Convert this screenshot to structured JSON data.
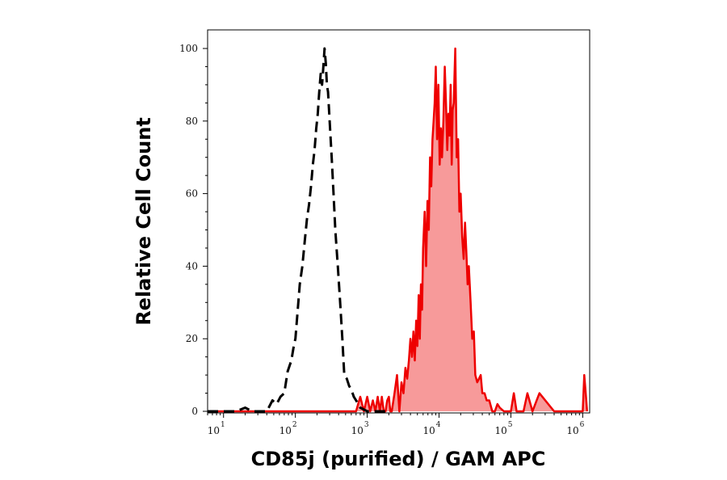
{
  "chart_data": {
    "type": "area",
    "title": "",
    "xlabel": "CD85j (purified) / GAM APC",
    "ylabel": "Relative Cell Count",
    "xscale": "log",
    "xlim": [
      6,
      1250000
    ],
    "ylim": [
      0,
      100
    ],
    "grid": false,
    "legend": "none",
    "y_ticks": [
      {
        "value": 0,
        "label": "0"
      },
      {
        "value": 20,
        "label": "20"
      },
      {
        "value": 40,
        "label": "40"
      },
      {
        "value": 60,
        "label": "60"
      },
      {
        "value": 80,
        "label": "80"
      },
      {
        "value": 100,
        "label": "100"
      }
    ],
    "x_ticks": [
      {
        "value": 10,
        "base": "10",
        "exp": "1"
      },
      {
        "value": 100,
        "base": "10",
        "exp": "2"
      },
      {
        "value": 1000,
        "base": "10",
        "exp": "3"
      },
      {
        "value": 10000,
        "base": "10",
        "exp": "4"
      },
      {
        "value": 100000,
        "base": "10",
        "exp": "5"
      },
      {
        "value": 1000000,
        "base": "10",
        "exp": "6"
      }
    ],
    "series": [
      {
        "style": "dashed",
        "color": "#000000",
        "fill": "none",
        "x": [
          6,
          15,
          20,
          25,
          40,
          48,
          55,
          62,
          70,
          78,
          88,
          95,
          100,
          108,
          115,
          125,
          135,
          145,
          155,
          165,
          175,
          185,
          195,
          205,
          215,
          225,
          235,
          245,
          255,
          265,
          275,
          285,
          300,
          320,
          340,
          360,
          390,
          420,
          450,
          480,
          520,
          560,
          600,
          650,
          700,
          750,
          800,
          1000,
          2000
        ],
        "y": [
          0,
          0,
          1,
          0,
          0,
          3,
          2,
          4,
          5,
          11,
          14,
          18,
          20,
          28,
          35,
          40,
          47,
          53,
          57,
          62,
          68,
          72,
          78,
          82,
          88,
          93,
          90,
          95,
          100,
          96,
          90,
          88,
          80,
          70,
          60,
          50,
          40,
          30,
          20,
          10,
          9,
          7,
          6,
          4,
          3,
          2,
          1,
          0,
          0
        ]
      },
      {
        "style": "solid",
        "color": "#ee0000",
        "fill": "#f79a9a",
        "x": [
          6,
          700,
          800,
          900,
          1000,
          1100,
          1200,
          1300,
          1400,
          1500,
          1600,
          1700,
          1800,
          1900,
          2000,
          2100,
          2200,
          2400,
          2600,
          2800,
          3000,
          3200,
          3400,
          3600,
          3800,
          4000,
          4200,
          4400,
          4600,
          4800,
          5000,
          5200,
          5400,
          5600,
          5800,
          6000,
          6300,
          6600,
          6900,
          7200,
          7500,
          7800,
          8100,
          8400,
          8700,
          9000,
          9400,
          9800,
          10200,
          10600,
          11000,
          11500,
          12000,
          12500,
          13000,
          13500,
          14000,
          14500,
          15000,
          15500,
          16000,
          16800,
          17600,
          18400,
          19200,
          20000,
          21000,
          22000,
          23000,
          24000,
          25000,
          26000,
          27500,
          29000,
          30500,
          32000,
          34000,
          36000,
          38000,
          40000,
          43000,
          46000,
          50000,
          55000,
          60000,
          65000,
          70000,
          80000,
          100000,
          110000,
          120000,
          150000,
          170000,
          200000,
          250000,
          400000,
          900000,
          1000000,
          1050000,
          1100000,
          1150000
        ],
        "y": [
          0,
          0,
          4,
          0,
          4,
          0,
          3,
          0,
          4,
          0,
          4,
          0,
          0,
          3,
          4,
          0,
          0,
          5,
          10,
          0,
          8,
          5,
          12,
          9,
          14,
          20,
          15,
          22,
          14,
          25,
          18,
          32,
          20,
          35,
          28,
          45,
          55,
          40,
          58,
          50,
          70,
          62,
          75,
          80,
          85,
          95,
          75,
          90,
          68,
          78,
          70,
          80,
          95,
          85,
          72,
          82,
          76,
          90,
          68,
          83,
          85,
          100,
          70,
          75,
          55,
          60,
          48,
          42,
          52,
          44,
          35,
          40,
          30,
          20,
          22,
          10,
          8,
          9,
          10,
          5,
          5,
          3,
          3,
          0,
          0,
          2,
          1,
          0,
          0,
          5,
          0,
          0,
          5,
          0,
          5,
          0,
          0,
          0,
          10,
          5,
          0
        ]
      }
    ]
  }
}
